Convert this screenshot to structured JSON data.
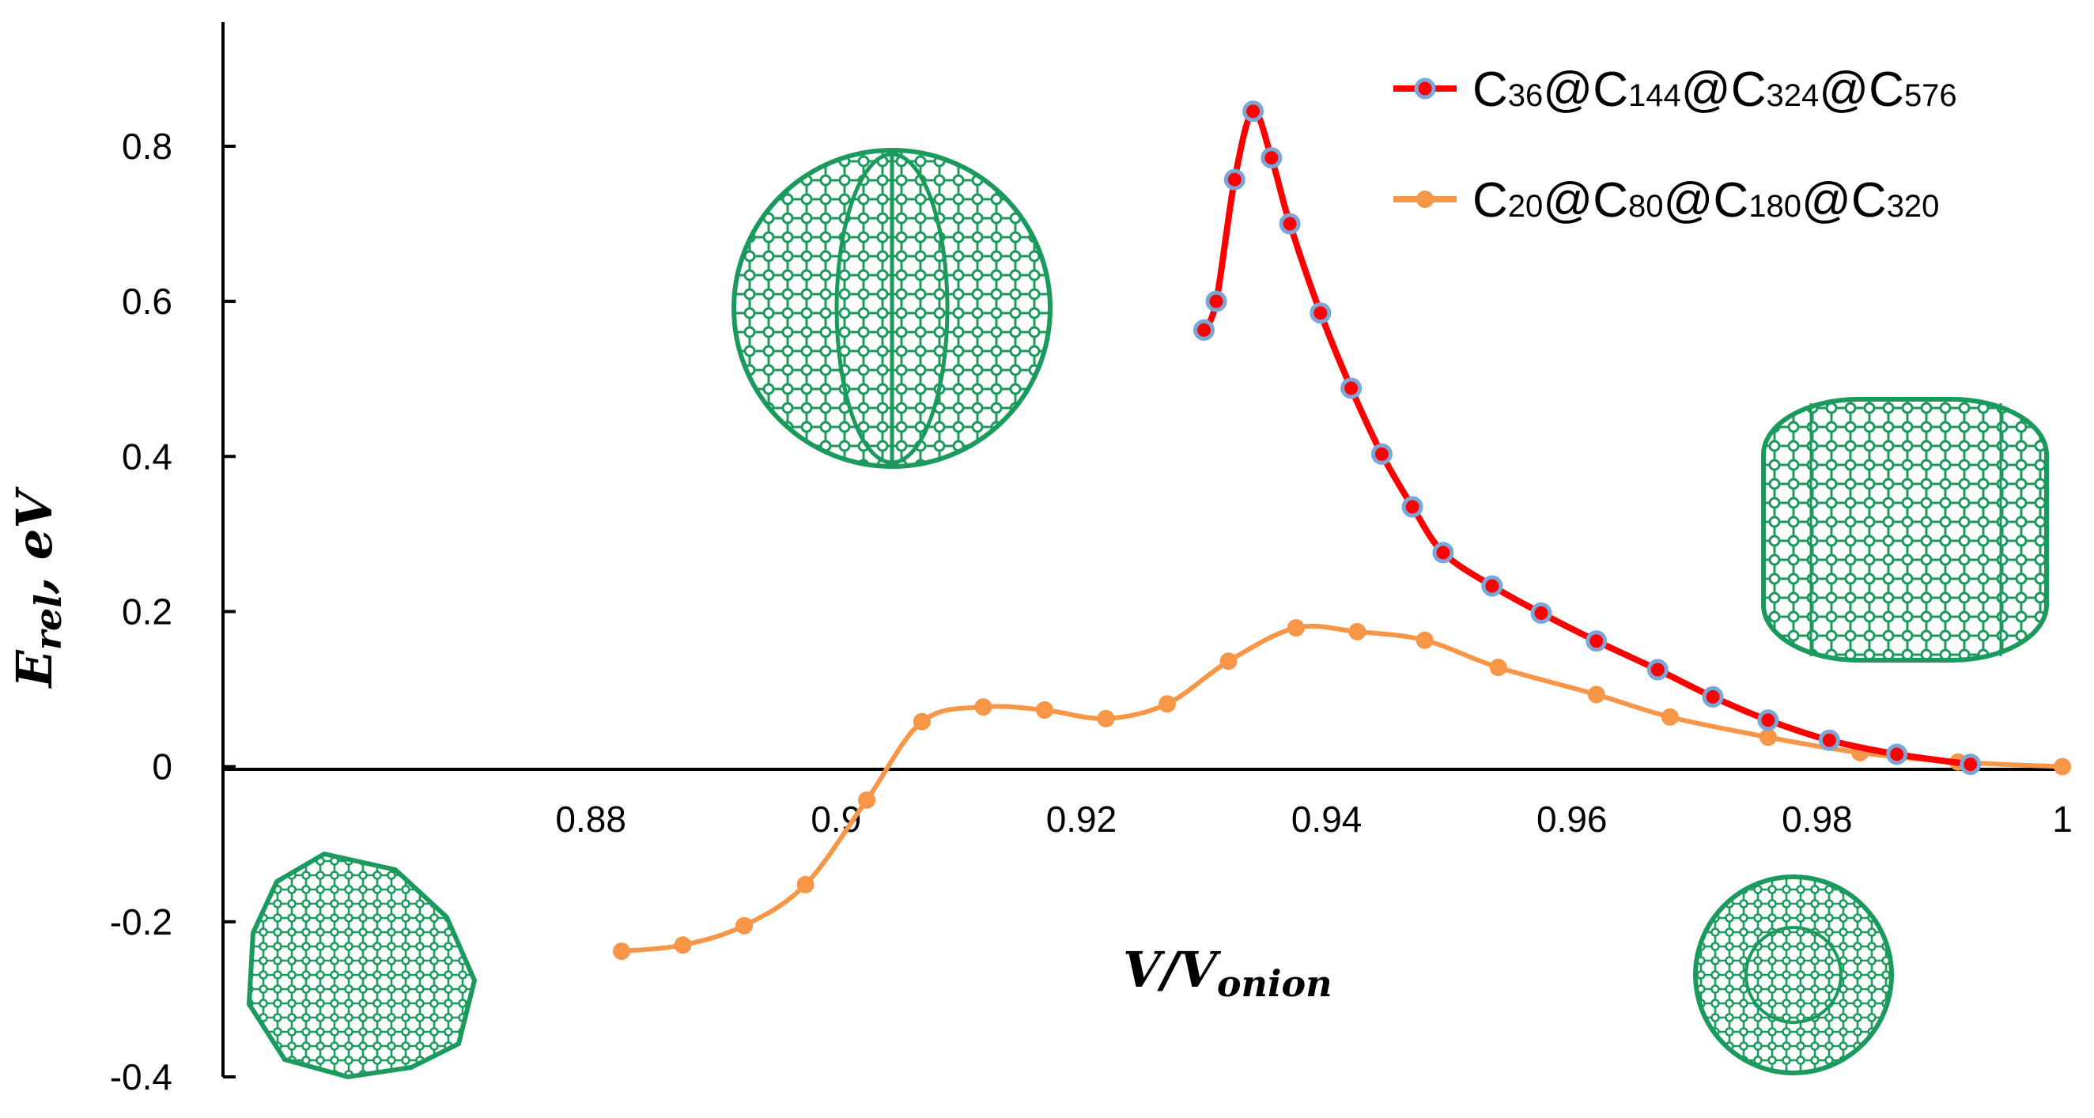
{
  "chart_data": {
    "type": "line",
    "xlabel": "V/V_onion",
    "ylabel": "E_rel, eV",
    "xlim": [
      0.85,
      1.0
    ],
    "ylim": [
      -0.4,
      0.96
    ],
    "xticks": [
      "0.88",
      "0.9",
      "0.92",
      "0.94",
      "0.96",
      "0.98",
      "1"
    ],
    "yticks": [
      "-0.4",
      "-0.2",
      "0",
      "0.2",
      "0.4",
      "0.6",
      "0.8"
    ],
    "legend_position": "top-right",
    "series": [
      {
        "name": "C36@C144@C324@C576",
        "name_parts": [
          [
            "C",
            "36"
          ],
          [
            "@C",
            "144"
          ],
          [
            "@C",
            "324"
          ],
          [
            "@C",
            "576"
          ]
        ],
        "line_color": "#ff0000",
        "marker_color": "#7aa6d8",
        "x": [
          0.93,
          0.931,
          0.9325,
          0.934,
          0.9355,
          0.937,
          0.9395,
          0.942,
          0.9445,
          0.947,
          0.9495,
          0.9535,
          0.9575,
          0.962,
          0.967,
          0.9715,
          0.976,
          0.981,
          0.9865,
          0.9925
        ],
        "y": [
          0.563,
          0.6,
          0.757,
          0.845,
          0.785,
          0.7,
          0.585,
          0.488,
          0.403,
          0.335,
          0.276,
          0.233,
          0.198,
          0.162,
          0.125,
          0.09,
          0.06,
          0.034,
          0.016,
          0.003
        ]
      },
      {
        "name": "C20@C80@C180@C320",
        "name_parts": [
          [
            "C",
            "20"
          ],
          [
            "@C",
            "80"
          ],
          [
            "@C",
            "180"
          ],
          [
            "@C",
            "320"
          ]
        ],
        "line_color": "#f79646",
        "marker_color": "#f79646",
        "x": [
          0.8825,
          0.8875,
          0.8925,
          0.8975,
          0.9025,
          0.907,
          0.912,
          0.917,
          0.922,
          0.927,
          0.932,
          0.9375,
          0.9425,
          0.948,
          0.954,
          0.962,
          0.968,
          0.976,
          0.9835,
          0.9915,
          1.0
        ],
        "y": [
          -0.238,
          -0.23,
          -0.205,
          -0.152,
          -0.043,
          0.058,
          0.077,
          0.073,
          0.062,
          0.081,
          0.136,
          0.179,
          0.174,
          0.163,
          0.128,
          0.093,
          0.064,
          0.038,
          0.018,
          0.006,
          0.0
        ]
      }
    ]
  },
  "insets": [
    {
      "name": "onion-cluster-top-left",
      "color": "#1a9a5c"
    },
    {
      "name": "onion-cluster-right",
      "color": "#1a9a5c"
    },
    {
      "name": "onion-cluster-bottom-left",
      "color": "#1a9a5c"
    },
    {
      "name": "onion-cluster-bottom-right",
      "color": "#1a9a5c"
    }
  ]
}
